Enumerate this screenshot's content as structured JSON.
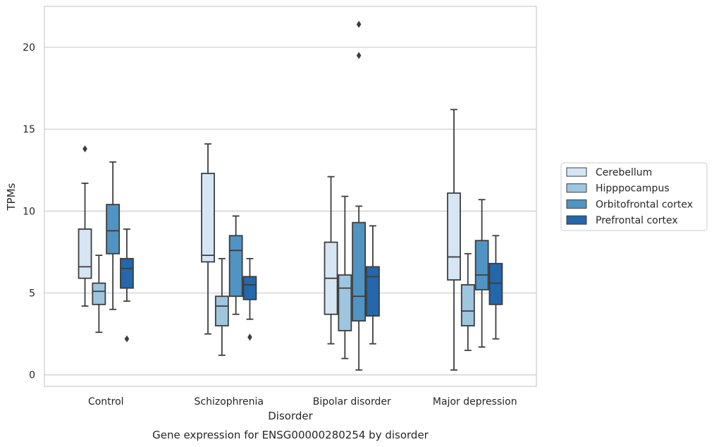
{
  "caption": "Gene expression for ENSG00000280254 by disorder",
  "chart_data": {
    "type": "box",
    "title": "",
    "xlabel": "Disorder",
    "ylabel": "TPMs",
    "ylim": [
      -0.7,
      22.5
    ],
    "yticks": [
      0,
      5,
      10,
      15,
      20
    ],
    "grid": "horizontal",
    "legend_position": "right",
    "categories": [
      "Control",
      "Schizophrenia",
      "Bipolar disorder",
      "Major depression"
    ],
    "series": [
      {
        "name": "Cerebellum",
        "color": "#d6e5f3",
        "boxes": [
          {
            "whislo": 4.2,
            "q1": 5.9,
            "med": 6.6,
            "q3": 8.9,
            "whishi": 11.7,
            "fliers": [
              13.8
            ]
          },
          {
            "whislo": 2.5,
            "q1": 6.9,
            "med": 7.3,
            "q3": 12.3,
            "whishi": 14.1,
            "fliers": []
          },
          {
            "whislo": 1.9,
            "q1": 3.7,
            "med": 5.9,
            "q3": 8.1,
            "whishi": 12.1,
            "fliers": []
          },
          {
            "whislo": 0.3,
            "q1": 5.8,
            "med": 7.2,
            "q3": 11.1,
            "whishi": 16.2,
            "fliers": []
          }
        ]
      },
      {
        "name": "Hipppocampus",
        "color": "#9ec6df",
        "boxes": [
          {
            "whislo": 2.6,
            "q1": 4.3,
            "med": 5.1,
            "q3": 5.6,
            "whishi": 7.3,
            "fliers": []
          },
          {
            "whislo": 1.2,
            "q1": 3.0,
            "med": 4.2,
            "q3": 4.8,
            "whishi": 7.1,
            "fliers": []
          },
          {
            "whislo": 1.0,
            "q1": 2.7,
            "med": 5.3,
            "q3": 6.1,
            "whishi": 10.9,
            "fliers": []
          },
          {
            "whislo": 1.5,
            "q1": 3.0,
            "med": 3.9,
            "q3": 5.5,
            "whishi": 7.4,
            "fliers": []
          }
        ]
      },
      {
        "name": "Orbitofrontal cortex",
        "color": "#5094c4",
        "boxes": [
          {
            "whislo": 4.0,
            "q1": 7.4,
            "med": 8.8,
            "q3": 10.4,
            "whishi": 13.0,
            "fliers": []
          },
          {
            "whislo": 3.7,
            "q1": 4.8,
            "med": 7.6,
            "q3": 8.5,
            "whishi": 9.7,
            "fliers": []
          },
          {
            "whislo": 0.3,
            "q1": 3.3,
            "med": 4.8,
            "q3": 9.3,
            "whishi": 10.3,
            "fliers": [
              21.4,
              19.5
            ]
          },
          {
            "whislo": 1.7,
            "q1": 5.2,
            "med": 6.1,
            "q3": 8.2,
            "whishi": 10.7,
            "fliers": []
          }
        ]
      },
      {
        "name": "Prefrontal cortex",
        "color": "#2467aa",
        "boxes": [
          {
            "whislo": 4.5,
            "q1": 5.3,
            "med": 6.5,
            "q3": 7.1,
            "whishi": 8.9,
            "fliers": [
              2.2
            ]
          },
          {
            "whislo": 3.4,
            "q1": 4.6,
            "med": 5.5,
            "q3": 6.0,
            "whishi": 7.1,
            "fliers": [
              2.3
            ]
          },
          {
            "whislo": 1.9,
            "q1": 3.6,
            "med": 6.0,
            "q3": 6.6,
            "whishi": 9.1,
            "fliers": []
          },
          {
            "whislo": 2.2,
            "q1": 4.3,
            "med": 5.6,
            "q3": 6.8,
            "whishi": 8.5,
            "fliers": []
          }
        ]
      }
    ]
  }
}
